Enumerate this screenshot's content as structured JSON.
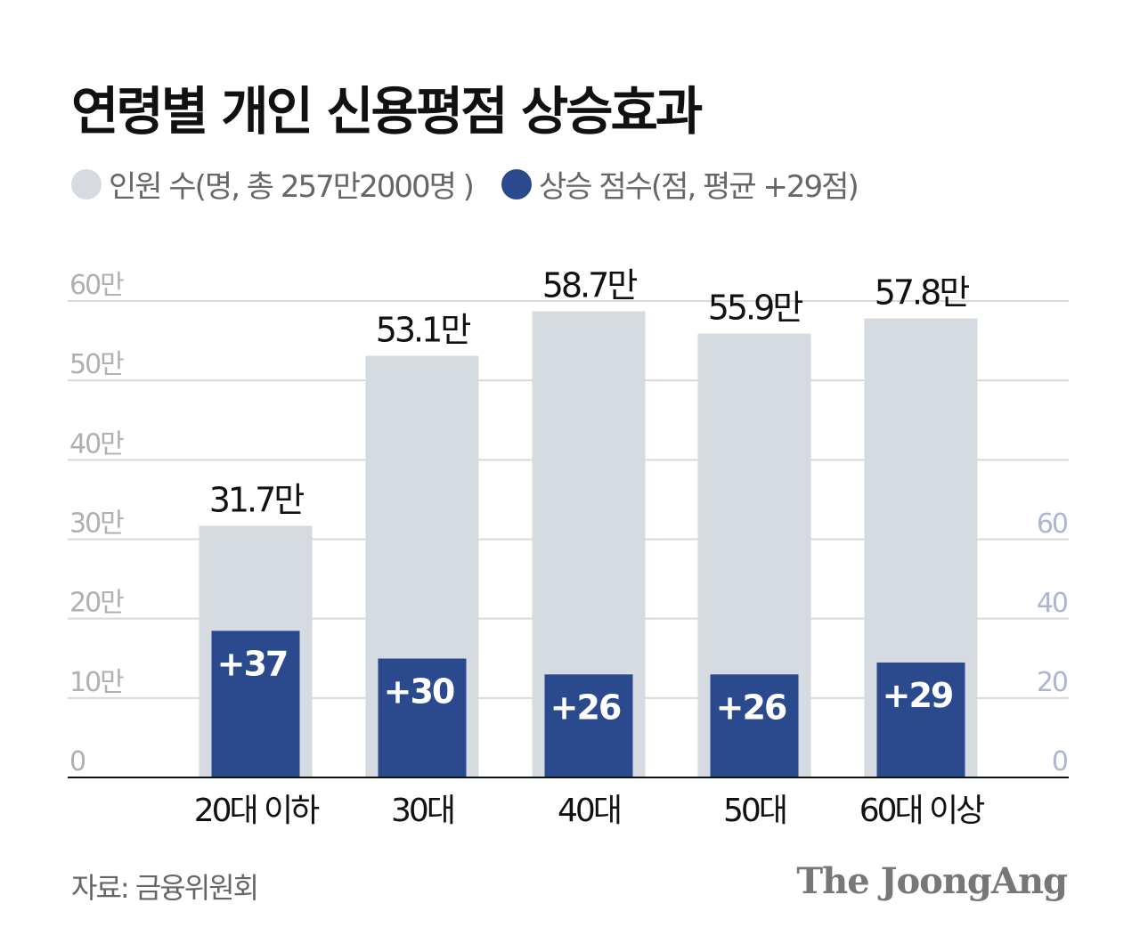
{
  "chart_data": {
    "type": "bar",
    "title": "연령별 개인 신용평점 상승효과",
    "categories": [
      "20대 이하",
      "30대",
      "40대",
      "50대",
      "60대 이상"
    ],
    "series": [
      {
        "name": "인원 수(명, 총 257만2000명 )",
        "axis": "left",
        "color": "#d5dbe0",
        "values": [
          31.7,
          53.1,
          58.7,
          55.9,
          57.8
        ],
        "labels": [
          "31.7만",
          "53.1만",
          "58.7만",
          "55.9만",
          "57.8만"
        ]
      },
      {
        "name": "상승 점수(점, 평균 +29점)",
        "axis": "right",
        "color": "#2b4a8e",
        "values": [
          37,
          30,
          26,
          26,
          29
        ],
        "labels": [
          "+37",
          "+30",
          "+26",
          "+26",
          "+29"
        ]
      }
    ],
    "left_axis": {
      "ylim": [
        0,
        60
      ],
      "ticks": [
        0,
        10,
        20,
        30,
        40,
        50,
        60
      ],
      "tick_labels": [
        "0",
        "10만",
        "20만",
        "30만",
        "40만",
        "50만",
        "60만"
      ]
    },
    "right_axis": {
      "ylim": [
        0,
        60
      ],
      "ticks": [
        0,
        20,
        40,
        60
      ],
      "tick_labels": [
        "0",
        "20",
        "40",
        "60"
      ]
    },
    "grid": true,
    "legend_position": "top-left"
  },
  "source": "자료: 금융위원회",
  "logo": "The JoongAng"
}
